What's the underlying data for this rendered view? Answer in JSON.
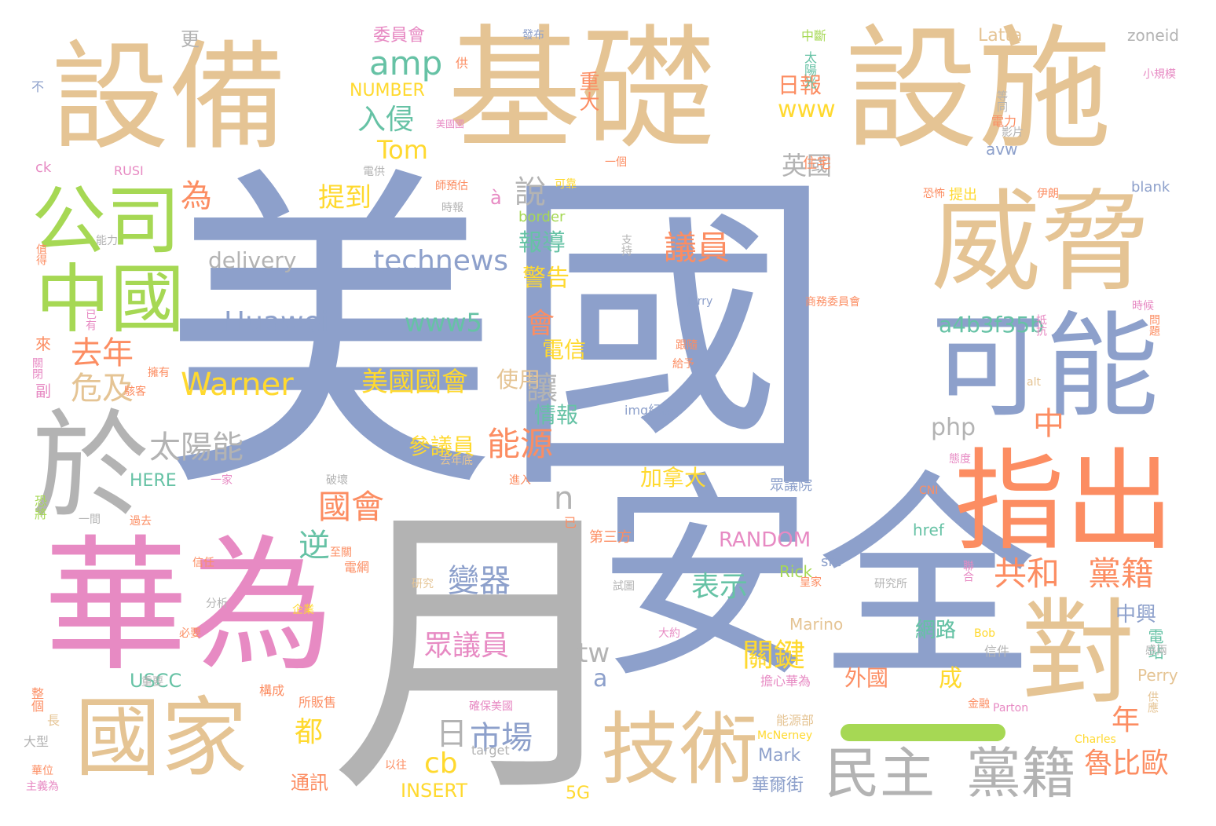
{
  "palette": {
    "tan": "#e5c494",
    "blue": "#8da0cb",
    "pink": "#e78ac3",
    "orange": "#fc8d62",
    "green": "#a6d854",
    "yellow": "#ffd92f",
    "teal": "#66c2a5",
    "gray": "#b3b3b3"
  },
  "words": [
    {
      "text": "美國",
      "color": "blue"
    },
    {
      "text": "基礎",
      "color": "tan"
    },
    {
      "text": "設施",
      "color": "tan"
    },
    {
      "text": "設備",
      "color": "tan"
    },
    {
      "text": "月",
      "color": "gray"
    },
    {
      "text": "華為",
      "color": "pink"
    },
    {
      "text": "安全",
      "color": "blue"
    },
    {
      "text": "威脅",
      "color": "tan"
    },
    {
      "text": "可能",
      "color": "blue"
    },
    {
      "text": "指出",
      "color": "orange"
    },
    {
      "text": "對",
      "color": "tan"
    },
    {
      "text": "國家",
      "color": "tan"
    },
    {
      "text": "於",
      "color": "gray"
    },
    {
      "text": "公司",
      "color": "green"
    },
    {
      "text": "中國",
      "color": "green"
    },
    {
      "text": "技術",
      "color": "tan"
    },
    {
      "text": "民主",
      "color": "gray"
    },
    {
      "text": "黨籍",
      "color": "gray"
    },
    {
      "text": "amp",
      "color": "teal"
    },
    {
      "text": "technews",
      "color": "blue"
    },
    {
      "text": "Huawei",
      "color": "blue"
    },
    {
      "text": "Warner",
      "color": "yellow"
    },
    {
      "text": "delivery",
      "color": "gray"
    },
    {
      "text": "www5",
      "color": "teal"
    },
    {
      "text": "Tom",
      "color": "yellow"
    },
    {
      "text": "入侵",
      "color": "teal"
    },
    {
      "text": "為",
      "color": "orange"
    },
    {
      "text": "去年",
      "color": "orange"
    },
    {
      "text": "危及",
      "color": "tan"
    },
    {
      "text": "太陽能",
      "color": "gray"
    },
    {
      "text": "議員",
      "color": "orange"
    },
    {
      "text": "共和",
      "color": "orange"
    },
    {
      "text": "黨籍",
      "color": "orange"
    },
    {
      "text": "國會",
      "color": "orange"
    },
    {
      "text": "能源",
      "color": "orange"
    },
    {
      "text": "美國國會",
      "color": "yellow"
    },
    {
      "text": "提到",
      "color": "yellow"
    },
    {
      "text": "日報",
      "color": "orange"
    },
    {
      "text": "www",
      "color": "yellow"
    },
    {
      "text": "英國",
      "color": "gray"
    },
    {
      "text": "報導",
      "color": "teal"
    },
    {
      "text": "警告",
      "color": "yellow"
    },
    {
      "text": "說",
      "color": "gray"
    },
    {
      "text": "會",
      "color": "orange"
    },
    {
      "text": "電信",
      "color": "yellow"
    },
    {
      "text": "使用",
      "color": "tan"
    },
    {
      "text": "情報",
      "color": "teal"
    },
    {
      "text": "讓",
      "color": "gray"
    },
    {
      "text": "a4b3f35b",
      "color": "teal"
    },
    {
      "text": "php",
      "color": "gray"
    },
    {
      "text": "中",
      "color": "orange"
    },
    {
      "text": "參議員",
      "color": "yellow"
    },
    {
      "text": "加拿大",
      "color": "yellow"
    },
    {
      "text": "關鍵",
      "color": "yellow"
    },
    {
      "text": "表示",
      "color": "teal"
    },
    {
      "text": "變器",
      "color": "blue"
    },
    {
      "text": "眾議員",
      "color": "pink"
    },
    {
      "text": "逆",
      "color": "teal"
    },
    {
      "text": "n",
      "color": "gray"
    },
    {
      "text": "日",
      "color": "gray"
    },
    {
      "text": "市場",
      "color": "blue"
    },
    {
      "text": "cb",
      "color": "yellow"
    },
    {
      "text": "都",
      "color": "yellow"
    },
    {
      "text": "tw",
      "color": "gray"
    },
    {
      "text": "a",
      "color": "blue"
    },
    {
      "text": "魯比歐",
      "color": "orange"
    },
    {
      "text": "年",
      "color": "orange"
    },
    {
      "text": "RANDOM",
      "color": "pink"
    },
    {
      "text": "網路",
      "color": "teal"
    },
    {
      "text": "外國",
      "color": "orange"
    },
    {
      "text": "成",
      "color": "yellow"
    },
    {
      "text": "中興",
      "color": "blue"
    },
    {
      "text": "電站",
      "color": "teal"
    },
    {
      "text": "重大",
      "color": "orange"
    },
    {
      "text": "委員會",
      "color": "pink"
    },
    {
      "text": "NUMBER",
      "color": "yellow"
    },
    {
      "text": "Latta",
      "color": "tan"
    },
    {
      "text": "zoneid",
      "color": "gray"
    },
    {
      "text": "ck",
      "color": "pink"
    },
    {
      "text": "RUSI",
      "color": "pink"
    },
    {
      "text": "blank",
      "color": "blue"
    },
    {
      "text": "avw",
      "color": "blue"
    },
    {
      "text": "border",
      "color": "green"
    },
    {
      "text": "電供",
      "color": "gray"
    },
    {
      "text": "HERE",
      "color": "teal"
    },
    {
      "text": "USCC",
      "color": "teal"
    },
    {
      "text": "INSERT",
      "color": "yellow"
    },
    {
      "text": "5G",
      "color": "yellow"
    },
    {
      "text": "Mark",
      "color": "blue"
    },
    {
      "text": "華爾街",
      "color": "blue"
    },
    {
      "text": "通訊",
      "color": "orange"
    },
    {
      "text": "Marino",
      "color": "tan"
    },
    {
      "text": "Perry",
      "color": "tan"
    },
    {
      "text": "Rick",
      "color": "green"
    },
    {
      "text": "href",
      "color": "teal"
    },
    {
      "text": "src",
      "color": "blue"
    },
    {
      "text": "眾議院",
      "color": "blue"
    },
    {
      "text": "第三方",
      "color": "orange"
    },
    {
      "text": "img紀錄",
      "color": "blue"
    },
    {
      "text": "Jerry",
      "color": "blue"
    },
    {
      "text": "target",
      "color": "gray"
    },
    {
      "text": "McNerney",
      "color": "yellow"
    },
    {
      "text": "Charles",
      "color": "yellow"
    },
    {
      "text": "Parton",
      "color": "pink"
    },
    {
      "text": "Bob",
      "color": "yellow"
    },
    {
      "text": "CNI",
      "color": "orange"
    },
    {
      "text": "alt",
      "color": "tan"
    },
    {
      "text": "太陽光",
      "color": "teal"
    },
    {
      "text": "中斷",
      "color": "green"
    },
    {
      "text": "發布",
      "color": "blue"
    },
    {
      "text": "更",
      "color": "gray"
    },
    {
      "text": "住宅",
      "color": "orange"
    },
    {
      "text": "電力",
      "color": "orange"
    },
    {
      "text": "小規模",
      "color": "pink"
    },
    {
      "text": "提出",
      "color": "yellow"
    },
    {
      "text": "伊朗",
      "color": "orange"
    },
    {
      "text": "時候",
      "color": "pink"
    },
    {
      "text": "問題",
      "color": "orange"
    },
    {
      "text": "能力",
      "color": "gray"
    },
    {
      "text": "值得",
      "color": "orange"
    },
    {
      "text": "已有",
      "color": "pink"
    },
    {
      "text": "來",
      "color": "orange"
    },
    {
      "text": "副",
      "color": "pink"
    },
    {
      "text": "關閉",
      "color": "pink"
    },
    {
      "text": "擁有",
      "color": "orange"
    },
    {
      "text": "駭客",
      "color": "orange"
    },
    {
      "text": "恐將",
      "color": "green"
    },
    {
      "text": "過去",
      "color": "orange"
    },
    {
      "text": "一間",
      "color": "gray"
    },
    {
      "text": "信任",
      "color": "orange"
    },
    {
      "text": "分析",
      "color": "gray"
    },
    {
      "text": "必要",
      "color": "orange"
    },
    {
      "text": "整個",
      "color": "orange"
    },
    {
      "text": "重要",
      "color": "gray"
    },
    {
      "text": "大型",
      "color": "gray"
    },
    {
      "text": "長",
      "color": "tan"
    },
    {
      "text": "華位",
      "color": "orange"
    },
    {
      "text": "主義為",
      "color": "pink"
    },
    {
      "text": "企業",
      "color": "yellow"
    },
    {
      "text": "研究",
      "color": "tan"
    },
    {
      "text": "研究所",
      "color": "gray"
    },
    {
      "text": "金融",
      "color": "orange"
    },
    {
      "text": "信件",
      "color": "gray"
    },
    {
      "text": "擔心華為",
      "color": "pink"
    },
    {
      "text": "能源部",
      "color": "tan"
    },
    {
      "text": "以往",
      "color": "orange"
    },
    {
      "text": "確保美國",
      "color": "pink"
    },
    {
      "text": "所販售",
      "color": "orange"
    },
    {
      "text": "構成",
      "color": "orange"
    },
    {
      "text": "去年底",
      "color": "tan"
    },
    {
      "text": "態度",
      "color": "pink"
    },
    {
      "text": "一家",
      "color": "pink"
    },
    {
      "text": "破壞",
      "color": "gray"
    },
    {
      "text": "進入",
      "color": "orange"
    },
    {
      "text": "至關",
      "color": "orange"
    },
    {
      "text": "電網",
      "color": "orange"
    },
    {
      "text": "試圖",
      "color": "gray"
    },
    {
      "text": "皇家",
      "color": "orange"
    },
    {
      "text": "大約",
      "color": "pink"
    },
    {
      "text": "供應",
      "color": "tan"
    },
    {
      "text": "感兩",
      "color": "gray"
    },
    {
      "text": "聯合",
      "color": "pink"
    },
    {
      "text": "跟隨",
      "color": "orange"
    },
    {
      "text": "給予",
      "color": "orange"
    },
    {
      "text": "網路",
      "color": "teal"
    },
    {
      "text": "商務委員會",
      "color": "orange"
    },
    {
      "text": "抵抗",
      "color": "pink"
    },
    {
      "text": "可靠",
      "color": "yellow"
    },
    {
      "text": "師預估",
      "color": "orange"
    },
    {
      "text": "時報",
      "color": "gray"
    },
    {
      "text": "美國國",
      "color": "pink"
    },
    {
      "text": "恐怖",
      "color": "orange"
    },
    {
      "text": "支持",
      "color": "gray"
    },
    {
      "text": "影片",
      "color": "gray"
    },
    {
      "text": "等同",
      "color": "gray"
    },
    {
      "text": "一個",
      "color": "orange"
    },
    {
      "text": "不",
      "color": "blue"
    },
    {
      "text": "供",
      "color": "orange"
    },
    {
      "text": "已",
      "color": "orange"
    },
    {
      "text": "à",
      "color": "pink"
    }
  ]
}
